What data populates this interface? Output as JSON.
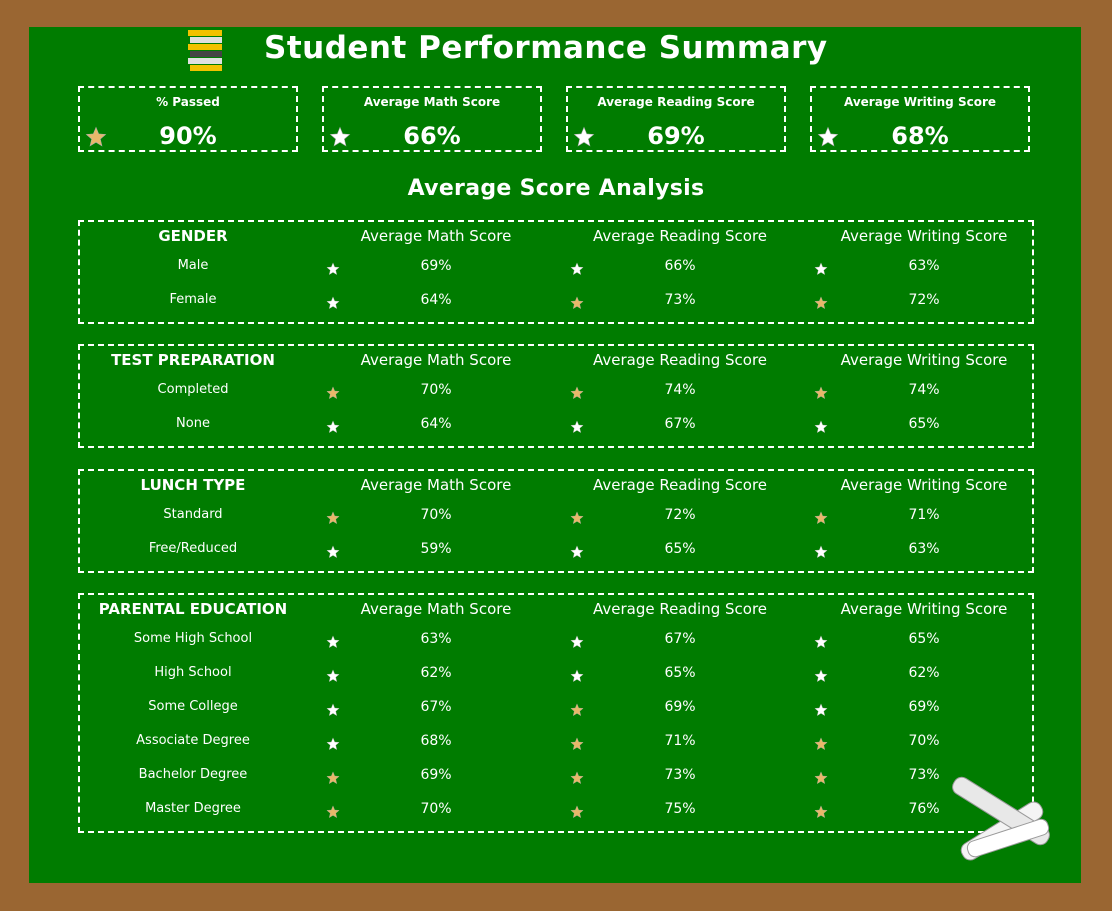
{
  "title": "Student Performance Summary",
  "kpis": [
    {
      "label": "% Passed",
      "value": "90%",
      "star": "gold"
    },
    {
      "label": "Average Math Score",
      "value": "66%",
      "star": "white"
    },
    {
      "label": "Average Reading Score",
      "value": "69%",
      "star": "white"
    },
    {
      "label": "Average Writing Score",
      "value": "68%",
      "star": "white"
    }
  ],
  "analysis_title": "Average Score Analysis",
  "columns": [
    "Average Math Score",
    "Average Reading Score",
    "Average Writing Score"
  ],
  "colors": {
    "board": "#007c00",
    "frame": "#9a6632",
    "chalk": "#ffffff",
    "gold_star": "#e8b86a"
  },
  "sections": [
    {
      "category": "GENDER",
      "rows": [
        {
          "label": "Male",
          "cells": [
            {
              "v": "69%",
              "s": "white"
            },
            {
              "v": "66%",
              "s": "white"
            },
            {
              "v": "63%",
              "s": "white"
            }
          ]
        },
        {
          "label": "Female",
          "cells": [
            {
              "v": "64%",
              "s": "white"
            },
            {
              "v": "73%",
              "s": "gold"
            },
            {
              "v": "72%",
              "s": "gold"
            }
          ]
        }
      ]
    },
    {
      "category": "TEST PREPARATION",
      "rows": [
        {
          "label": "Completed",
          "cells": [
            {
              "v": "70%",
              "s": "gold"
            },
            {
              "v": "74%",
              "s": "gold"
            },
            {
              "v": "74%",
              "s": "gold"
            }
          ]
        },
        {
          "label": "None",
          "cells": [
            {
              "v": "64%",
              "s": "white"
            },
            {
              "v": "67%",
              "s": "white"
            },
            {
              "v": "65%",
              "s": "white"
            }
          ]
        }
      ]
    },
    {
      "category": "LUNCH TYPE",
      "rows": [
        {
          "label": "Standard",
          "cells": [
            {
              "v": "70%",
              "s": "gold"
            },
            {
              "v": "72%",
              "s": "gold"
            },
            {
              "v": "71%",
              "s": "gold"
            }
          ]
        },
        {
          "label": "Free/Reduced",
          "cells": [
            {
              "v": "59%",
              "s": "white"
            },
            {
              "v": "65%",
              "s": "white"
            },
            {
              "v": "63%",
              "s": "white"
            }
          ]
        }
      ]
    },
    {
      "category": "PARENTAL EDUCATION",
      "rows": [
        {
          "label": "Some High School",
          "cells": [
            {
              "v": "63%",
              "s": "white"
            },
            {
              "v": "67%",
              "s": "white"
            },
            {
              "v": "65%",
              "s": "white"
            }
          ]
        },
        {
          "label": "High School",
          "cells": [
            {
              "v": "62%",
              "s": "white"
            },
            {
              "v": "65%",
              "s": "white"
            },
            {
              "v": "62%",
              "s": "white"
            }
          ]
        },
        {
          "label": "Some College",
          "cells": [
            {
              "v": "67%",
              "s": "white"
            },
            {
              "v": "69%",
              "s": "gold"
            },
            {
              "v": "69%",
              "s": "white"
            }
          ]
        },
        {
          "label": "Associate Degree",
          "cells": [
            {
              "v": "68%",
              "s": "white"
            },
            {
              "v": "71%",
              "s": "gold"
            },
            {
              "v": "70%",
              "s": "gold"
            }
          ]
        },
        {
          "label": "Bachelor Degree",
          "cells": [
            {
              "v": "69%",
              "s": "gold"
            },
            {
              "v": "73%",
              "s": "gold"
            },
            {
              "v": "73%",
              "s": "gold"
            }
          ]
        },
        {
          "label": "Master Degree",
          "cells": [
            {
              "v": "70%",
              "s": "gold"
            },
            {
              "v": "75%",
              "s": "gold"
            },
            {
              "v": "76%",
              "s": "gold"
            }
          ]
        }
      ]
    }
  ]
}
